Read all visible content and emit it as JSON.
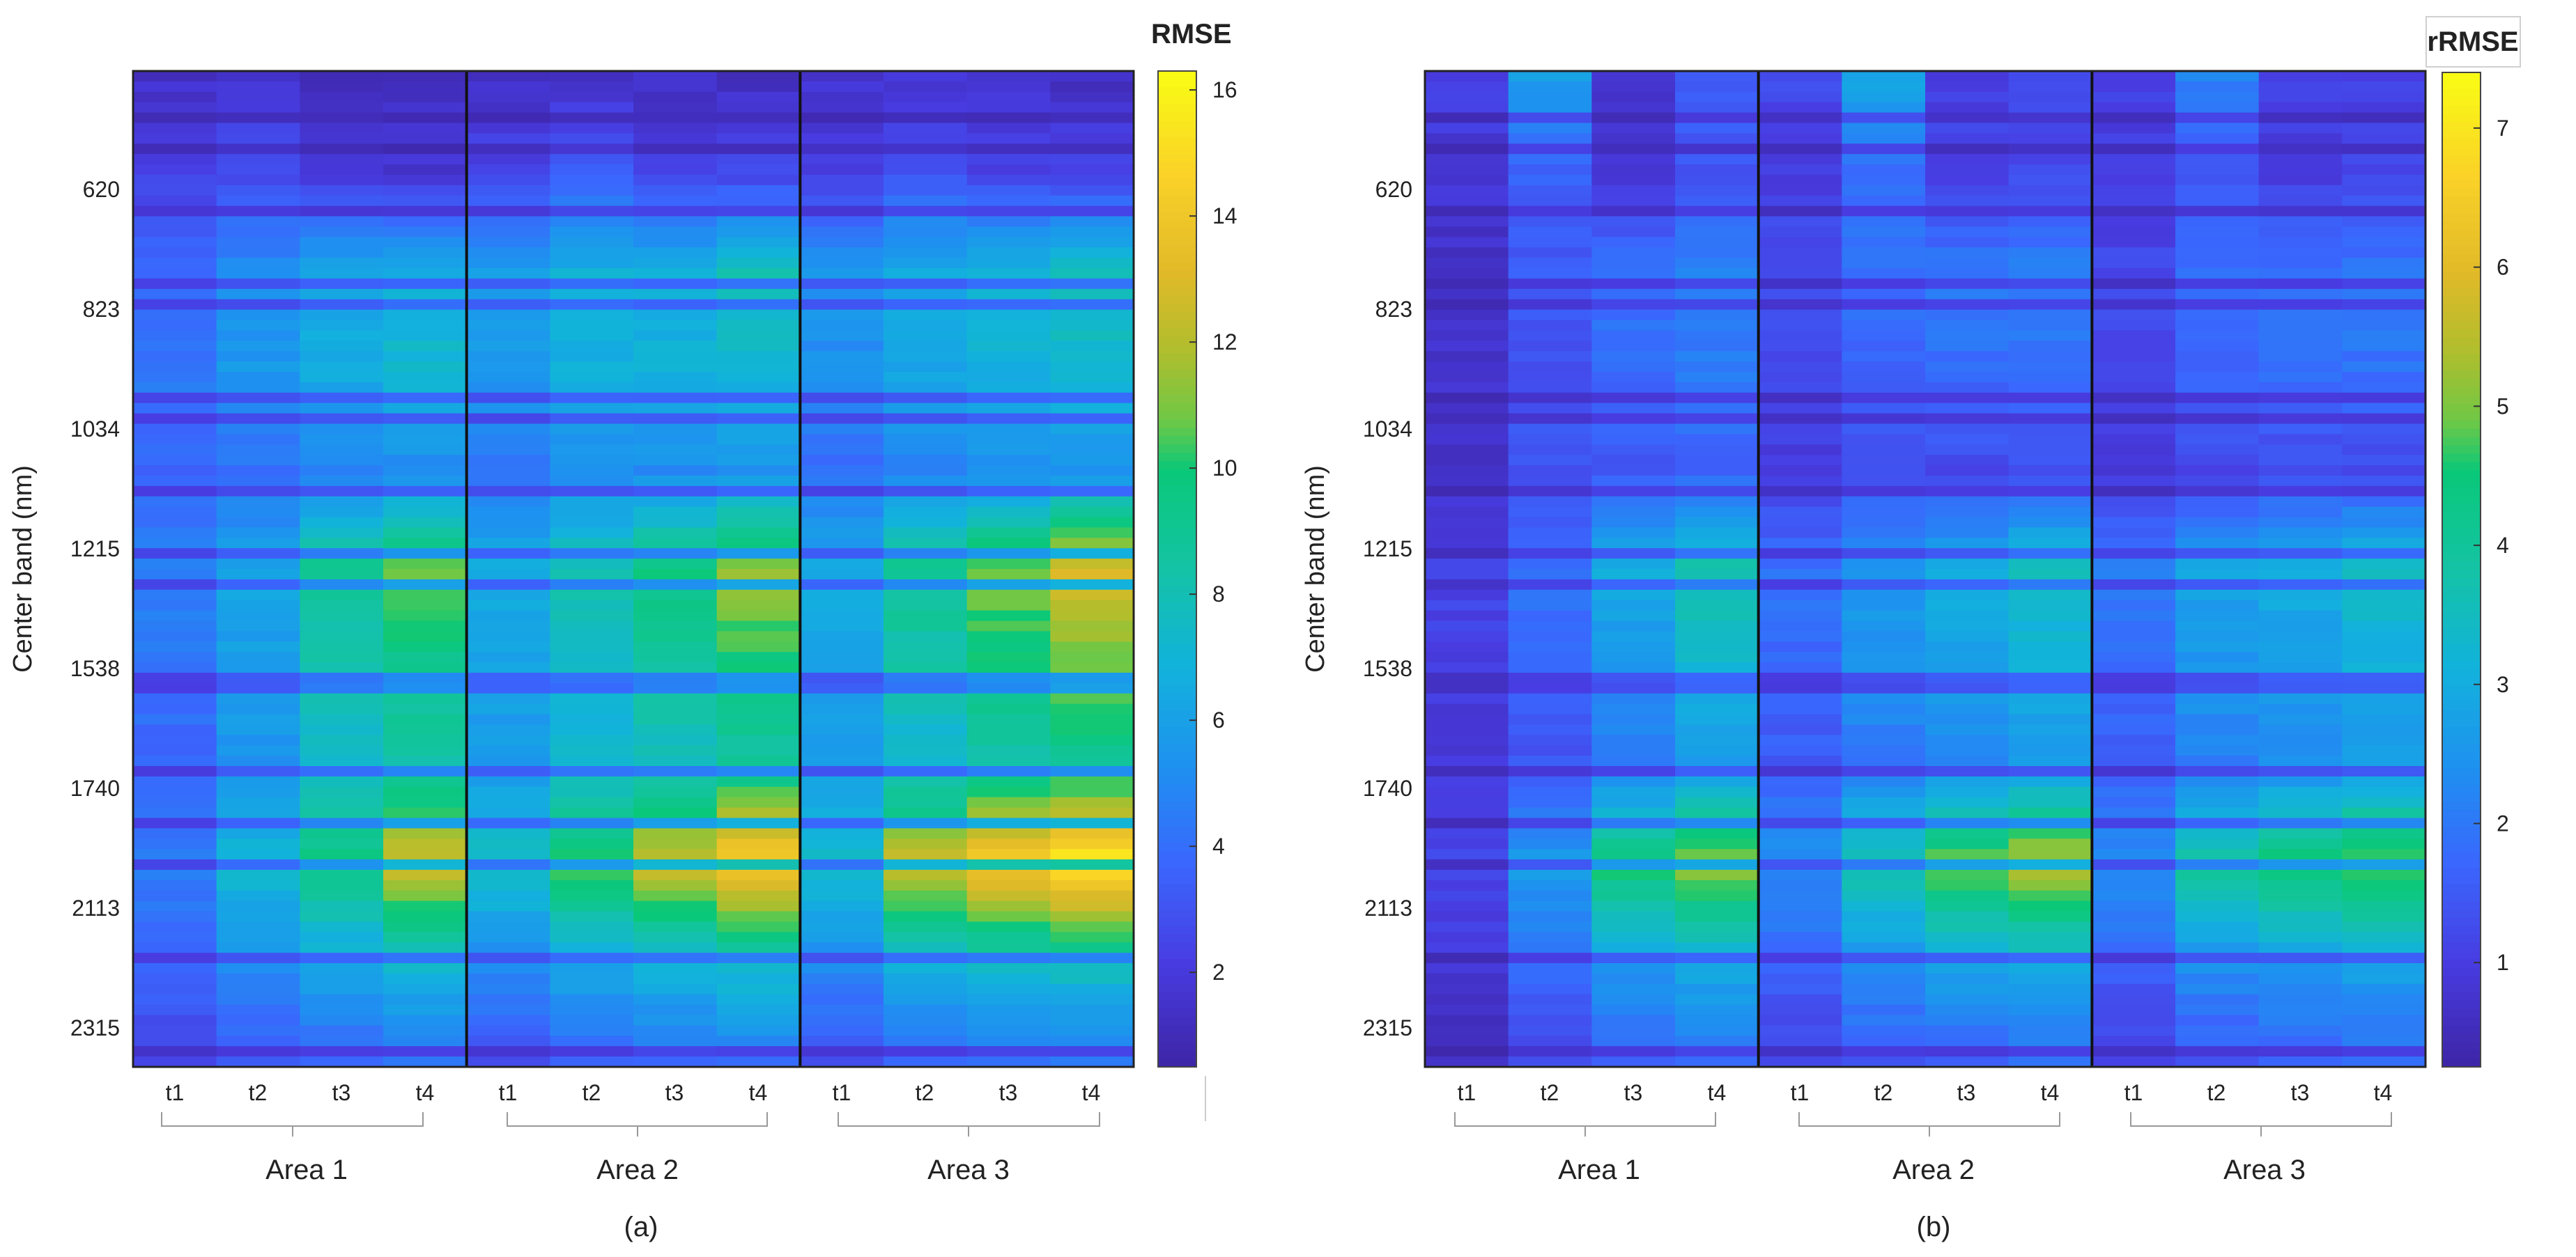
{
  "chart_data": [
    {
      "type": "heatmap",
      "panel": "(a)",
      "colorbar_label": "RMSE",
      "colorbar_range": [
        0.5,
        16.3
      ],
      "colorbar_ticks": [
        "2",
        "4",
        "6",
        "8",
        "10",
        "12",
        "14",
        "16"
      ],
      "colorbar_tick_values": [
        2,
        4,
        6,
        8,
        10,
        12,
        14,
        16
      ],
      "ylabel": "Center band (nm)",
      "ytick_labels": [
        "620",
        "823",
        "1034",
        "1215",
        "1538",
        "1740",
        "2113",
        "2315"
      ],
      "column_labels": [
        "t1",
        "t2",
        "t3",
        "t4",
        "t1",
        "t2",
        "t3",
        "t4",
        "t1",
        "t2",
        "t3",
        "t4"
      ],
      "groups": [
        "Area 1",
        "Area 2",
        "Area 3"
      ],
      "band_levels": [
        [
          1.4,
          1.6,
          1.2,
          1.1,
          1.3,
          1.5,
          1.3,
          1.2,
          1.5,
          1.6,
          1.4,
          1.3
        ],
        [
          2.2,
          2.8,
          1.8,
          1.7,
          2.5,
          3.2,
          2.4,
          2.5,
          2.3,
          3.0,
          2.4,
          2.2
        ],
        [
          3.8,
          5.0,
          6.2,
          6.8,
          5.8,
          6.8,
          6.6,
          7.8,
          5.4,
          6.5,
          7.0,
          7.8
        ],
        [
          4.4,
          5.6,
          6.6,
          7.2,
          5.5,
          6.6,
          6.8,
          7.2,
          5.2,
          6.2,
          6.8,
          7.2
        ],
        [
          3.4,
          4.0,
          4.6,
          5.0,
          4.2,
          5.0,
          5.0,
          5.4,
          4.0,
          4.6,
          5.0,
          5.2
        ],
        [
          4.8,
          6.2,
          9.0,
          11.0,
          6.6,
          8.2,
          9.6,
          11.6,
          6.4,
          9.0,
          11.0,
          13.0
        ],
        [
          4.2,
          5.8,
          8.0,
          9.2,
          6.2,
          7.4,
          8.6,
          9.8,
          6.0,
          8.2,
          9.6,
          10.8
        ],
        [
          3.8,
          5.4,
          7.2,
          8.2,
          5.6,
          7.0,
          7.6,
          8.6,
          5.6,
          7.0,
          8.2,
          9.0
        ],
        [
          4.6,
          7.2,
          9.6,
          12.8,
          7.8,
          10.4,
          12.8,
          14.8,
          7.8,
          12.8,
          14.6,
          15.8
        ],
        [
          3.8,
          5.2,
          6.2,
          7.2,
          5.0,
          6.4,
          7.0,
          7.6,
          5.0,
          6.8,
          7.4,
          7.8
        ],
        [
          2.2,
          3.0,
          3.6,
          4.0,
          3.0,
          3.6,
          3.8,
          4.2,
          2.8,
          3.6,
          4.0,
          4.2
        ]
      ]
    },
    {
      "type": "heatmap",
      "panel": "(b)",
      "colorbar_label": "rRMSE",
      "colorbar_range": [
        0.25,
        7.4
      ],
      "colorbar_ticks": [
        "1",
        "2",
        "3",
        "4",
        "5",
        "6",
        "7"
      ],
      "colorbar_tick_values": [
        1,
        2,
        3,
        4,
        5,
        6,
        7
      ],
      "ylabel": "Center band (nm)",
      "ytick_labels": [
        "620",
        "823",
        "1034",
        "1215",
        "1538",
        "1740",
        "2113",
        "2315"
      ],
      "column_labels": [
        "t1",
        "t2",
        "t3",
        "t4",
        "t1",
        "t2",
        "t3",
        "t4",
        "t1",
        "t2",
        "t3",
        "t4"
      ],
      "groups": [
        "Area 1",
        "Area 2",
        "Area 3"
      ],
      "band_levels": [
        [
          1.0,
          2.6,
          0.8,
          1.5,
          1.2,
          2.8,
          1.0,
          1.2,
          1.1,
          2.2,
          1.0,
          1.0
        ],
        [
          0.8,
          1.6,
          0.9,
          1.4,
          1.0,
          1.8,
          1.1,
          1.2,
          0.9,
          1.4,
          1.0,
          1.1
        ],
        [
          0.6,
          1.5,
          1.9,
          2.2,
          1.3,
          1.9,
          2.0,
          2.1,
          1.2,
          1.8,
          1.9,
          2.0
        ],
        [
          0.7,
          1.4,
          1.8,
          2.0,
          1.2,
          1.7,
          1.8,
          1.9,
          1.1,
          1.7,
          1.8,
          1.9
        ],
        [
          0.7,
          1.3,
          1.4,
          1.6,
          0.9,
          1.2,
          1.2,
          1.3,
          0.8,
          1.1,
          1.2,
          1.2
        ],
        [
          1.1,
          1.9,
          3.0,
          3.8,
          1.9,
          2.6,
          3.0,
          3.6,
          2.1,
          2.8,
          3.0,
          3.4
        ],
        [
          1.0,
          1.7,
          2.5,
          3.2,
          1.7,
          2.4,
          2.7,
          3.0,
          1.8,
          2.5,
          2.7,
          3.0
        ],
        [
          0.8,
          1.4,
          2.0,
          2.6,
          1.5,
          2.0,
          2.2,
          2.5,
          1.5,
          2.1,
          2.3,
          2.6
        ],
        [
          1.2,
          2.6,
          4.6,
          5.2,
          2.4,
          3.8,
          5.0,
          5.6,
          2.4,
          4.0,
          4.6,
          5.0
        ],
        [
          0.8,
          1.8,
          2.6,
          3.0,
          1.6,
          2.4,
          2.8,
          3.0,
          1.6,
          2.4,
          2.6,
          2.8
        ],
        [
          0.5,
          1.2,
          1.6,
          1.8,
          1.0,
          1.5,
          1.6,
          1.8,
          1.0,
          1.4,
          1.6,
          1.7
        ]
      ]
    }
  ]
}
